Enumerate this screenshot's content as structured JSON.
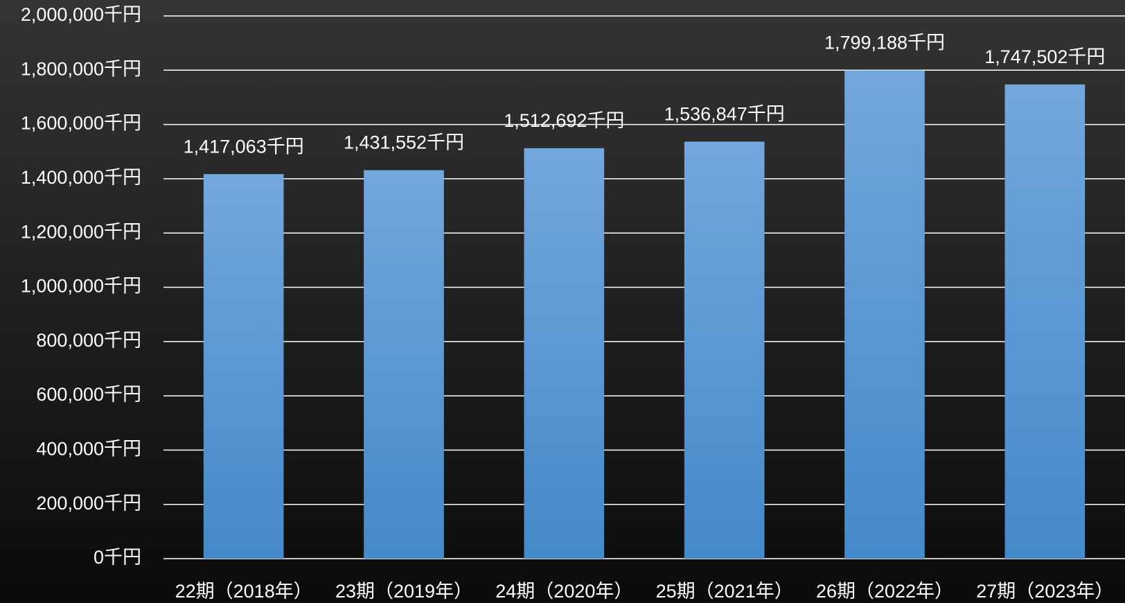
{
  "chart_data": {
    "type": "bar",
    "categories": [
      "22期（2018年）",
      "23期（2019年）",
      "24期（2020年）",
      "25期（2021年）",
      "26期（2022年）",
      "27期（2023年）"
    ],
    "values": [
      1417063,
      1431552,
      1512692,
      1536847,
      1799188,
      1747502
    ],
    "value_labels": [
      "1,417,063千円",
      "1,431,552千円",
      "1,512,692千円",
      "1,536,847千円",
      "1,799,188千円",
      "1,747,502千円"
    ],
    "color": "#5b9bd5",
    "ylim": [
      0,
      2000000
    ],
    "yticks": [
      {
        "value": 0,
        "label": "0千円"
      },
      {
        "value": 200000,
        "label": "200,000千円"
      },
      {
        "value": 400000,
        "label": "400,000千円"
      },
      {
        "value": 600000,
        "label": "600,000千円"
      },
      {
        "value": 800000,
        "label": "800,000千円"
      },
      {
        "value": 1000000,
        "label": "1,000,000千円"
      },
      {
        "value": 1200000,
        "label": "1,200,000千円"
      },
      {
        "value": 1400000,
        "label": "1,400,000千円"
      },
      {
        "value": 1600000,
        "label": "1,600,000千円"
      },
      {
        "value": 1800000,
        "label": "1,800,000千円"
      },
      {
        "value": 2000000,
        "label": "2,000,000千円"
      }
    ],
    "grid": true
  }
}
